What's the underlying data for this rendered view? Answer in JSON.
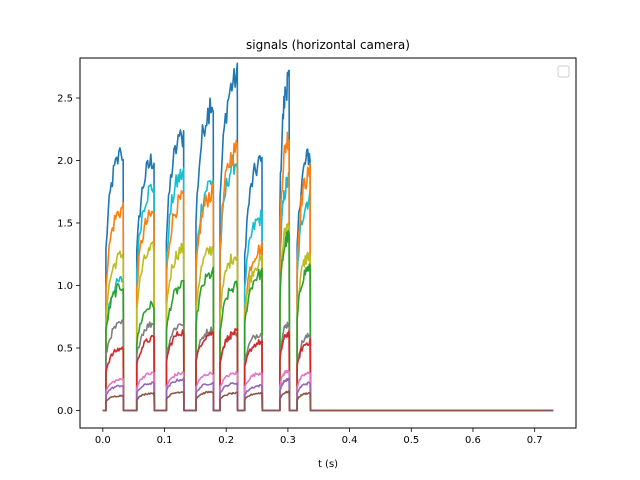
{
  "chart_data": {
    "type": "line",
    "title": "signals (horizontal camera)",
    "xlabel": "t (s)",
    "ylabel": "",
    "xlim": [
      -0.037,
      0.767
    ],
    "ylim": [
      -0.14,
      2.82
    ],
    "xticks": [
      "0.0",
      "0.1",
      "0.2",
      "0.3",
      "0.4",
      "0.5",
      "0.6",
      "0.7"
    ],
    "yticks": [
      "0.0",
      "0.5",
      "1.0",
      "1.5",
      "2.0",
      "2.5"
    ],
    "grid": false,
    "legend": "top-right (empty)",
    "pulses": [
      {
        "t_start": 0.005,
        "t_end": 0.033
      },
      {
        "t_start": 0.055,
        "t_end": 0.083
      },
      {
        "t_start": 0.103,
        "t_end": 0.131
      },
      {
        "t_start": 0.151,
        "t_end": 0.179
      },
      {
        "t_start": 0.19,
        "t_end": 0.218
      },
      {
        "t_start": 0.23,
        "t_end": 0.258
      },
      {
        "t_start": 0.287,
        "t_end": 0.302
      },
      {
        "t_start": 0.315,
        "t_end": 0.336
      }
    ],
    "t_end": 0.73,
    "series": [
      {
        "color": "#1f77b4",
        "peaks": [
          2.06,
          2.01,
          2.2,
          2.45,
          2.68,
          1.99,
          2.65,
          2.05
        ]
      },
      {
        "color": "#17becf",
        "peaks": [
          1.05,
          1.8,
          1.9,
          1.85,
          2.0,
          1.55,
          1.85,
          1.7
        ]
      },
      {
        "color": "#ff7f0e",
        "peaks": [
          1.62,
          1.58,
          1.7,
          1.75,
          2.1,
          1.3,
          2.2,
          1.9
        ]
      },
      {
        "color": "#bcbd22",
        "peaks": [
          1.25,
          1.3,
          1.3,
          1.3,
          1.25,
          1.2,
          1.5,
          1.25
        ]
      },
      {
        "color": "#2ca02c",
        "peaks": [
          1.0,
          0.85,
          1.0,
          1.1,
          1.0,
          1.1,
          1.4,
          1.15
        ]
      },
      {
        "color": "#7f7f7f",
        "peaks": [
          0.7,
          0.7,
          0.7,
          0.65,
          0.62,
          0.62,
          0.7,
          0.6
        ]
      },
      {
        "color": "#d62728",
        "peaks": [
          0.5,
          0.58,
          0.63,
          0.62,
          0.63,
          0.55,
          0.62,
          0.55
        ]
      },
      {
        "color": "#e377c2",
        "peaks": [
          0.25,
          0.3,
          0.3,
          0.3,
          0.3,
          0.3,
          0.32,
          0.3
        ]
      },
      {
        "color": "#9467bd",
        "peaks": [
          0.2,
          0.22,
          0.25,
          0.22,
          0.22,
          0.2,
          0.25,
          0.22
        ]
      },
      {
        "color": "#8c564b",
        "peaks": [
          0.12,
          0.14,
          0.15,
          0.15,
          0.14,
          0.14,
          0.15,
          0.14
        ]
      }
    ]
  }
}
